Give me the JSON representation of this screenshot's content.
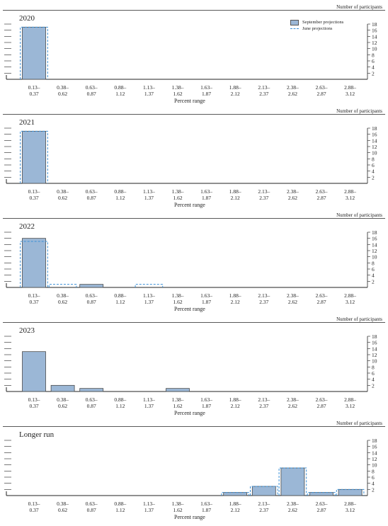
{
  "unit_label": "Number of participants",
  "legend": {
    "september": "September projections",
    "june": "June projections"
  },
  "colors": {
    "bar_fill": "#9bb7d6",
    "bar_stroke": "#4a4a4a",
    "june_dash": "#3a8fd6",
    "axis": "#222222"
  },
  "chart_data": [
    {
      "type": "bar",
      "title": "2020",
      "xlabel": "Percent range",
      "ylabel": "Number of participants",
      "ylim": [
        0,
        18
      ],
      "yticks": [
        2,
        4,
        6,
        8,
        10,
        12,
        14,
        16,
        18
      ],
      "categories": [
        "0.13–\n0.37",
        "0.38–\n0.62",
        "0.63–\n0.87",
        "0.88–\n1.12",
        "1.13–\n1.37",
        "1.38–\n1.62",
        "1.63–\n1.87",
        "1.88–\n2.12",
        "2.13–\n2.37",
        "2.38–\n2.62",
        "2.63–\n2.87",
        "2.88–\n3.12"
      ],
      "series": [
        {
          "name": "September projections",
          "values": [
            17,
            0,
            0,
            0,
            0,
            0,
            0,
            0,
            0,
            0,
            0,
            0
          ]
        },
        {
          "name": "June projections",
          "values": [
            17,
            0,
            0,
            0,
            0,
            0,
            0,
            0,
            0,
            0,
            0,
            0
          ]
        }
      ],
      "legend": true
    },
    {
      "type": "bar",
      "title": "2021",
      "xlabel": "Percent range",
      "ylabel": "Number of participants",
      "ylim": [
        0,
        18
      ],
      "yticks": [
        2,
        4,
        6,
        8,
        10,
        12,
        14,
        16,
        18
      ],
      "categories": [
        "0.13–\n0.37",
        "0.38–\n0.62",
        "0.63–\n0.87",
        "0.88–\n1.12",
        "1.13–\n1.37",
        "1.38–\n1.62",
        "1.63–\n1.87",
        "1.88–\n2.12",
        "2.13–\n2.37",
        "2.38–\n2.62",
        "2.63–\n2.87",
        "2.88–\n3.12"
      ],
      "series": [
        {
          "name": "September projections",
          "values": [
            17,
            0,
            0,
            0,
            0,
            0,
            0,
            0,
            0,
            0,
            0,
            0
          ]
        },
        {
          "name": "June projections",
          "values": [
            17,
            0,
            0,
            0,
            0,
            0,
            0,
            0,
            0,
            0,
            0,
            0
          ]
        }
      ],
      "legend": false
    },
    {
      "type": "bar",
      "title": "2022",
      "xlabel": "Percent range",
      "ylabel": "Number of participants",
      "ylim": [
        0,
        18
      ],
      "yticks": [
        2,
        4,
        6,
        8,
        10,
        12,
        14,
        16,
        18
      ],
      "categories": [
        "0.13–\n0.37",
        "0.38–\n0.62",
        "0.63–\n0.87",
        "0.88–\n1.12",
        "1.13–\n1.37",
        "1.38–\n1.62",
        "1.63–\n1.87",
        "1.88–\n2.12",
        "2.13–\n2.37",
        "2.38–\n2.62",
        "2.63–\n2.87",
        "2.88–\n3.12"
      ],
      "series": [
        {
          "name": "September projections",
          "values": [
            16,
            0,
            1,
            0,
            0,
            0,
            0,
            0,
            0,
            0,
            0,
            0
          ]
        },
        {
          "name": "June projections",
          "values": [
            15,
            1,
            0,
            0,
            1,
            0,
            0,
            0,
            0,
            0,
            0,
            0
          ]
        }
      ],
      "legend": false
    },
    {
      "type": "bar",
      "title": "2023",
      "xlabel": "Percent range",
      "ylabel": "Number of participants",
      "ylim": [
        0,
        18
      ],
      "yticks": [
        2,
        4,
        6,
        8,
        10,
        12,
        14,
        16,
        18
      ],
      "categories": [
        "0.13–\n0.37",
        "0.38–\n0.62",
        "0.63–\n0.87",
        "0.88–\n1.12",
        "1.13–\n1.37",
        "1.38–\n1.62",
        "1.63–\n1.87",
        "1.88–\n2.12",
        "2.13–\n2.37",
        "2.38–\n2.62",
        "2.63–\n2.87",
        "2.88–\n3.12"
      ],
      "series": [
        {
          "name": "September projections",
          "values": [
            13,
            2,
            1,
            0,
            0,
            1,
            0,
            0,
            0,
            0,
            0,
            0
          ]
        }
      ],
      "legend": false
    },
    {
      "type": "bar",
      "title": "Longer run",
      "xlabel": "Percent range",
      "ylabel": "Number of participants",
      "ylim": [
        0,
        18
      ],
      "yticks": [
        2,
        4,
        6,
        8,
        10,
        12,
        14,
        16,
        18
      ],
      "categories": [
        "0.13–\n0.37",
        "0.38–\n0.62",
        "0.63–\n0.87",
        "0.88–\n1.12",
        "1.13–\n1.37",
        "1.38–\n1.62",
        "1.63–\n1.87",
        "1.88–\n2.12",
        "2.13–\n2.37",
        "2.38–\n2.62",
        "2.63–\n2.87",
        "2.88–\n3.12"
      ],
      "series": [
        {
          "name": "September projections",
          "values": [
            0,
            0,
            0,
            0,
            0,
            0,
            0,
            1,
            3,
            9,
            1,
            2
          ]
        },
        {
          "name": "June projections",
          "values": [
            0,
            0,
            0,
            0,
            0,
            0,
            0,
            1,
            3,
            9,
            1,
            2
          ]
        }
      ],
      "legend": false
    }
  ]
}
